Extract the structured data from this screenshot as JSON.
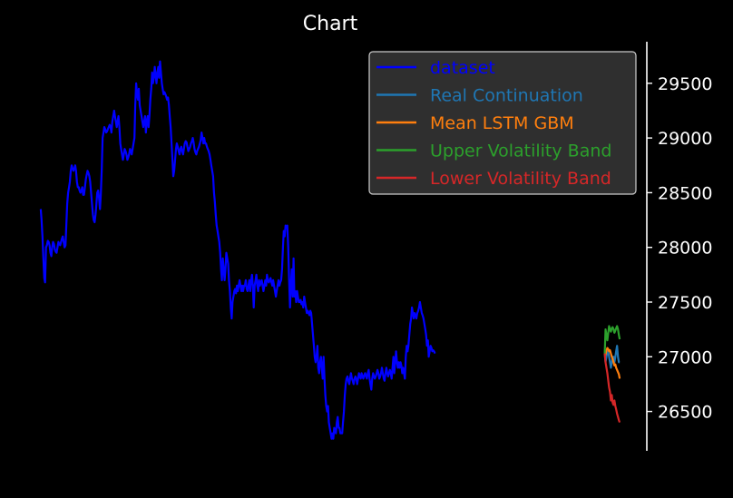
{
  "chart_data": {
    "type": "line",
    "title": "Chart",
    "xlabel": "",
    "ylabel": "",
    "ylim": [
      26140,
      29880
    ],
    "xlim": [
      -5,
      660
    ],
    "y_axis_position": "right",
    "yticks": [
      26500,
      27000,
      27500,
      28000,
      28500,
      29000,
      29500
    ],
    "ytick_labels": [
      "26500",
      "27000",
      "27500",
      "28000",
      "28500",
      "29000",
      "29500"
    ],
    "grid": false,
    "legend_position": "top-right",
    "series": [
      {
        "name": "dataset",
        "color": "#0000ff",
        "x_start": 0,
        "values": [
          28350,
          28250,
          28100,
          27900,
          27720,
          27680,
          28000,
          28020,
          28060,
          28050,
          28020,
          27950,
          27920,
          28000,
          28050,
          28030,
          27980,
          27960,
          27950,
          28000,
          28050,
          28030,
          28020,
          28050,
          28080,
          28100,
          28050,
          28000,
          28020,
          28200,
          28400,
          28500,
          28550,
          28600,
          28700,
          28750,
          28720,
          28700,
          28720,
          28750,
          28700,
          28600,
          28550,
          28550,
          28520,
          28500,
          28520,
          28550,
          28480,
          28480,
          28550,
          28620,
          28660,
          28700,
          28680,
          28650,
          28600,
          28500,
          28400,
          28300,
          28250,
          28230,
          28300,
          28400,
          28500,
          28520,
          28450,
          28350,
          28480,
          28700,
          29000,
          29050,
          29100,
          29080,
          29050,
          29060,
          29080,
          29100,
          29120,
          29100,
          29050,
          29150,
          29200,
          29250,
          29200,
          29150,
          29100,
          29150,
          29200,
          29100,
          28950,
          28900,
          28850,
          28800,
          28850,
          28900,
          28880,
          28850,
          28800,
          28820,
          28850,
          28900,
          28880,
          28850,
          28900,
          28950,
          29000,
          29300,
          29500,
          29400,
          29350,
          29450,
          29300,
          29250,
          29200,
          29150,
          29100,
          29150,
          29200,
          29050,
          29150,
          29200,
          29100,
          29200,
          29350,
          29450,
          29600,
          29500,
          29550,
          29650,
          29580,
          29500,
          29600,
          29650,
          29550,
          29700,
          29600,
          29500,
          29450,
          29400,
          29420,
          29400,
          29380,
          29350,
          29370,
          29300,
          29200,
          29100,
          28950,
          28800,
          28650,
          28700,
          28800,
          28900,
          28950,
          28920,
          28880,
          28850,
          28900,
          28920,
          28880,
          28850,
          28900,
          28950,
          28970,
          28960,
          28920,
          28880,
          28900,
          28920,
          28950,
          28970,
          29000,
          28960,
          28900,
          28870,
          28850,
          28880,
          28900,
          28920,
          28950,
          28980,
          29050,
          29000,
          28950,
          29000,
          28950,
          28950,
          28920,
          28900,
          28880,
          28850,
          28800,
          28750,
          28700,
          28650,
          28500,
          28420,
          28300,
          28200,
          28150,
          28100,
          28050,
          27950,
          27800,
          27700,
          27900,
          27800,
          27700,
          27800,
          27950,
          27900,
          27850,
          27700,
          27600,
          27450,
          27350,
          27500,
          27550,
          27600,
          27620,
          27580,
          27650,
          27600,
          27650,
          27700,
          27650,
          27600,
          27650,
          27600,
          27650,
          27650,
          27700,
          27620,
          27600,
          27650,
          27700,
          27600,
          27700,
          27750,
          27650,
          27450,
          27650,
          27700,
          27750,
          27650,
          27600,
          27700,
          27650,
          27680,
          27700,
          27650,
          27600,
          27650,
          27700,
          27650,
          27750,
          27700,
          27680,
          27700,
          27720,
          27680,
          27650,
          27700,
          27650,
          27600,
          27550,
          27600,
          27650,
          27700,
          27650,
          27680,
          27700,
          27800,
          28000,
          28150,
          28100,
          28200,
          28180,
          28200,
          28000,
          27700,
          27450,
          27650,
          27800,
          27550,
          27900,
          27550,
          27600,
          27500,
          27600,
          27550,
          27500,
          27500,
          27520,
          27480,
          27500,
          27450,
          27550,
          27500,
          27450,
          27400,
          27420,
          27400,
          27380,
          27420,
          27400,
          27300,
          27200,
          27100,
          27000,
          26950,
          27000,
          27100,
          26900,
          26850,
          26950,
          27000,
          26900,
          26800,
          27000,
          26800,
          26650,
          26550,
          26500,
          26550,
          26400,
          26350,
          26300,
          26250,
          26300,
          26250,
          26350,
          26320,
          26300,
          26400,
          26450,
          26350,
          26350,
          26300,
          26300,
          26300,
          26400,
          26500,
          26650,
          26750,
          26800,
          26820,
          26780,
          26750,
          26800,
          26850,
          26800,
          26780,
          26750,
          26800,
          26820,
          26800,
          26750,
          26800,
          26850,
          26820,
          26800,
          26850,
          26820,
          26800,
          26830,
          26850,
          26820,
          26800,
          26850,
          26880,
          26800,
          26750,
          26700,
          26800,
          26850,
          26820,
          26800,
          26820,
          26850,
          26880,
          26850,
          26800,
          26820,
          26850,
          26900,
          26850,
          26800,
          26780,
          26850,
          26900,
          26850,
          26820,
          26850,
          26880,
          26850,
          26800,
          26900,
          27000,
          26850,
          26950,
          27050,
          26950,
          26900,
          26950,
          26900,
          26950,
          26920,
          26850,
          26900,
          26850,
          26800,
          27000,
          27100,
          27050,
          27100,
          27200,
          27300,
          27350,
          27450,
          27400,
          27350,
          27400,
          27380,
          27350,
          27400,
          27420,
          27450,
          27500,
          27450,
          27400,
          27380,
          27350,
          27300,
          27250,
          27200,
          27100,
          27150,
          27000,
          27050,
          27100,
          27080,
          27050,
          27060,
          27050,
          27030
        ]
      },
      {
        "name": "Real Continuation",
        "color": "#1f77b4",
        "x_start": 638,
        "values": [
          27030,
          26950,
          27000,
          27050,
          27050,
          27000,
          26950,
          26900,
          26950,
          27000,
          27000,
          26950,
          27000,
          27050,
          27100,
          27000,
          26950,
          26950
        ]
      },
      {
        "name": "Mean LSTM GBM",
        "color": "#ff7f0e",
        "x_start": 638,
        "values": [
          27030,
          27020,
          27060,
          27080,
          27070,
          27050,
          27060,
          27030,
          27000,
          26980,
          26950,
          26920,
          26930,
          26900,
          26880,
          26860,
          26840,
          26800
        ]
      },
      {
        "name": "Upper Volatility Band",
        "color": "#2ca02c",
        "x_start": 638,
        "values": [
          27030,
          27250,
          27200,
          27150,
          27220,
          27280,
          27250,
          27230,
          27260,
          27270,
          27250,
          27220,
          27240,
          27260,
          27280,
          27250,
          27200,
          27160
        ]
      },
      {
        "name": "Lower Volatility Band",
        "color": "#d62728",
        "x_start": 638,
        "values": [
          27030,
          26950,
          26900,
          26850,
          26780,
          26720,
          26680,
          26600,
          26650,
          26580,
          26560,
          26600,
          26550,
          26520,
          26480,
          26450,
          26420,
          26400
        ]
      }
    ]
  }
}
